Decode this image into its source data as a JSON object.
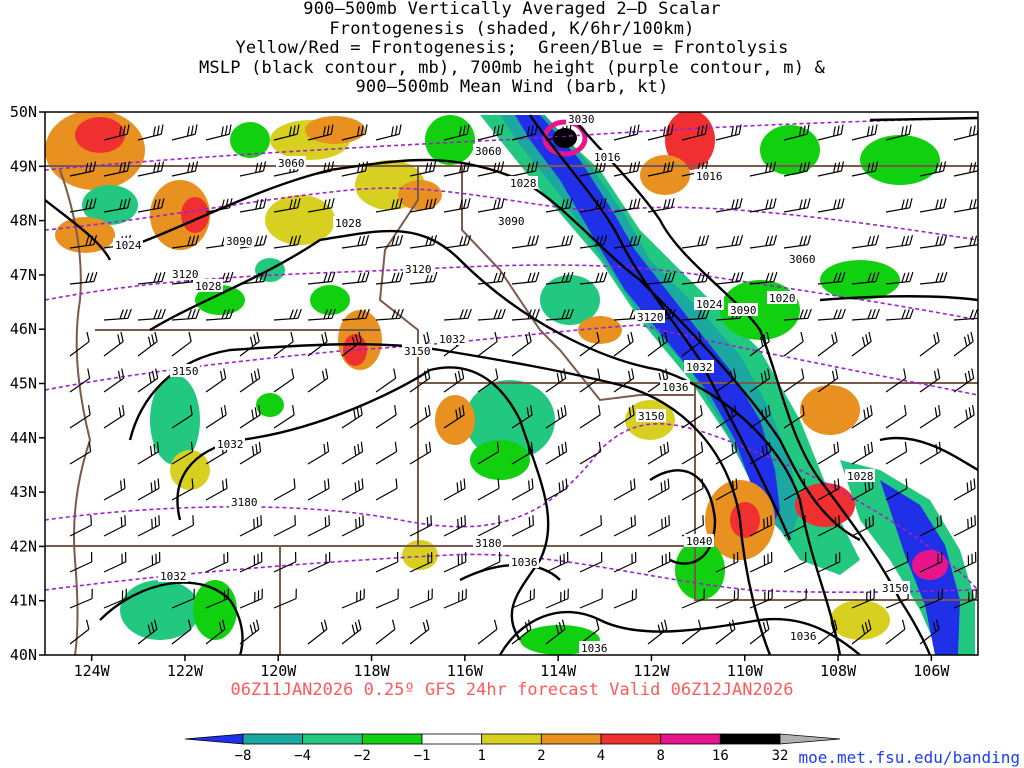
{
  "title": {
    "lines": [
      "900—500mb Vertically Averaged 2—D Scalar",
      "Frontogenesis (shaded, K/6hr/100km)",
      "Yellow/Red = Frontogenesis;  Green/Blue = Frontolysis",
      "MSLP (black contour, mb), 700mb height (purple contour, m) &",
      "900—500mb Mean Wind (barb, kt)"
    ]
  },
  "map": {
    "lat_labels": [
      "50N",
      "49N",
      "48N",
      "47N",
      "46N",
      "45N",
      "44N",
      "43N",
      "42N",
      "41N",
      "40N"
    ],
    "lon_labels": [
      "124W",
      "122W",
      "120W",
      "118W",
      "116W",
      "114W",
      "112W",
      "110W",
      "108W",
      "106W"
    ],
    "lon_range": [
      -125,
      -105
    ],
    "lat_range": [
      40,
      50
    ],
    "mslp_contour_labels": [
      "1024",
      "1028",
      "1028",
      "1028",
      "1032",
      "1032",
      "1032",
      "1032",
      "1036",
      "1036",
      "1036",
      "1036",
      "1040",
      "1016",
      "1016",
      "1020",
      "1024"
    ],
    "height_contour_labels": [
      "3030",
      "3060",
      "3060",
      "3060",
      "3090",
      "3090",
      "3120",
      "3120",
      "3120",
      "3150",
      "3150",
      "3150",
      "3150",
      "3180",
      "3180"
    ]
  },
  "forecast_info": "06Z11JAN2026 0.25º GFS 24hr forecast Valid 06Z12JAN2026",
  "colorbar": {
    "tick_labels": [
      "−8",
      "−4",
      "−2",
      "−1",
      "1",
      "2",
      "4",
      "8",
      "16",
      "32"
    ],
    "colors": [
      "#2030e8",
      "#1aa8a0",
      "#22c880",
      "#10d010",
      "#ffffff",
      "#d8d020",
      "#e89020",
      "#f03030",
      "#e8148c",
      "#000000",
      "#b0b0b0"
    ]
  },
  "credit": "moe.met.fsu.edu/banding",
  "colors": {
    "mslp_contour": "#000000",
    "height_contour": "#a020d0",
    "borders": "#7a5a4a",
    "forecast_text": "#ff5a5a",
    "credit_text": "#1a3cff"
  }
}
